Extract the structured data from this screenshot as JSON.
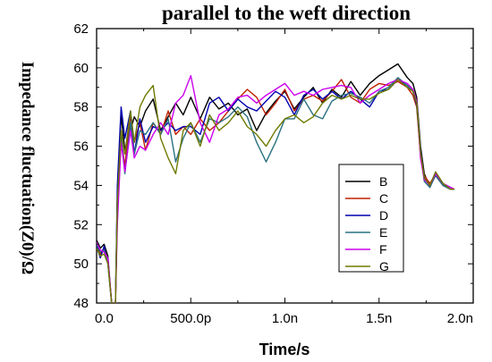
{
  "chart_data": {
    "type": "line",
    "title": "parallel to the weft direction",
    "xlabel": "Time/s",
    "ylabel": "Impedance fluctuation(Z0)/Ω",
    "xlim": [
      0,
      2.0
    ],
    "ylim": [
      48,
      62
    ],
    "x_ticks": [
      0,
      0.5,
      1.0,
      1.5,
      2.0
    ],
    "x_tick_labels": [
      "0.0",
      "500.0p",
      "1.0n",
      "1.5n",
      "2.0n"
    ],
    "y_ticks": [
      48,
      50,
      52,
      54,
      56,
      58,
      60,
      62
    ],
    "y_tick_labels": [
      "48",
      "50",
      "52",
      "54",
      "56",
      "58",
      "60",
      "62"
    ],
    "grid": false,
    "legend_position": "right",
    "series": [
      {
        "name": "B",
        "color": "#000000",
        "x": [
          0,
          0.02,
          0.04,
          0.06,
          0.08,
          0.1,
          0.11,
          0.13,
          0.15,
          0.18,
          0.2,
          0.23,
          0.26,
          0.3,
          0.34,
          0.38,
          0.42,
          0.46,
          0.5,
          0.55,
          0.6,
          0.65,
          0.7,
          0.75,
          0.8,
          0.85,
          0.9,
          0.95,
          1.0,
          1.05,
          1.1,
          1.15,
          1.2,
          1.25,
          1.3,
          1.35,
          1.4,
          1.45,
          1.5,
          1.55,
          1.6,
          1.65,
          1.68,
          1.7,
          1.72,
          1.74,
          1.77,
          1.8,
          1.84,
          1.88,
          1.9
        ],
        "y": [
          51.2,
          50.8,
          51.0,
          50.4,
          48,
          48,
          53.5,
          57.6,
          55.8,
          56.8,
          57.5,
          57.0,
          57.8,
          58.4,
          56.8,
          57.5,
          58.2,
          57.6,
          58.5,
          57.4,
          58.5,
          57.9,
          58.2,
          57.6,
          57.9,
          56.8,
          57.7,
          58.3,
          58.8,
          57.9,
          58.5,
          59.0,
          58.2,
          58.9,
          58.5,
          59.3,
          58.6,
          59.2,
          59.6,
          59.9,
          60.2,
          59.5,
          59.2,
          58.5,
          56.0,
          54.6,
          53.9,
          54.6,
          54.0,
          53.8,
          53.8
        ]
      },
      {
        "name": "C",
        "color": "#c02000",
        "x": [
          0,
          0.02,
          0.04,
          0.06,
          0.08,
          0.1,
          0.11,
          0.13,
          0.15,
          0.18,
          0.2,
          0.23,
          0.26,
          0.3,
          0.34,
          0.38,
          0.42,
          0.46,
          0.5,
          0.55,
          0.6,
          0.65,
          0.7,
          0.75,
          0.8,
          0.85,
          0.9,
          0.95,
          1.0,
          1.05,
          1.1,
          1.15,
          1.2,
          1.25,
          1.3,
          1.35,
          1.4,
          1.45,
          1.5,
          1.55,
          1.6,
          1.65,
          1.68,
          1.7,
          1.72,
          1.74,
          1.77,
          1.8,
          1.84,
          1.88,
          1.9
        ],
        "y": [
          51.0,
          50.5,
          50.8,
          50.2,
          48,
          48,
          52.5,
          56.4,
          55.0,
          57.6,
          56.2,
          57.2,
          55.8,
          57.2,
          56.6,
          57.8,
          56.6,
          57.0,
          56.6,
          57.4,
          56.8,
          57.2,
          57.8,
          58.4,
          58.9,
          58.5,
          57.6,
          58.2,
          58.9,
          57.8,
          58.4,
          58.6,
          58.3,
          58.8,
          59.4,
          58.5,
          58.2,
          58.9,
          59.2,
          59.1,
          59.3,
          59.0,
          58.6,
          58.0,
          55.5,
          54.5,
          54.1,
          54.6,
          54.0,
          53.9,
          53.8
        ]
      },
      {
        "name": "D",
        "color": "#0000b0",
        "x": [
          0,
          0.02,
          0.04,
          0.06,
          0.08,
          0.1,
          0.11,
          0.13,
          0.15,
          0.18,
          0.2,
          0.23,
          0.26,
          0.3,
          0.34,
          0.38,
          0.42,
          0.46,
          0.5,
          0.55,
          0.6,
          0.65,
          0.7,
          0.75,
          0.8,
          0.85,
          0.9,
          0.95,
          1.0,
          1.05,
          1.1,
          1.15,
          1.2,
          1.25,
          1.3,
          1.35,
          1.4,
          1.45,
          1.5,
          1.55,
          1.6,
          1.65,
          1.68,
          1.7,
          1.72,
          1.74,
          1.77,
          1.8,
          1.84,
          1.88,
          1.9
        ],
        "y": [
          50.9,
          50.3,
          50.9,
          50.0,
          48,
          48,
          54.0,
          58.0,
          56.4,
          57.8,
          55.6,
          57.4,
          56.2,
          57.0,
          56.8,
          57.2,
          56.8,
          57.0,
          57.0,
          56.6,
          58.2,
          58.5,
          57.8,
          58.4,
          58.0,
          57.8,
          58.3,
          58.8,
          58.5,
          57.6,
          58.6,
          58.9,
          58.4,
          58.8,
          58.4,
          58.8,
          58.4,
          58.0,
          58.8,
          58.9,
          59.4,
          59.1,
          58.8,
          58.1,
          55.8,
          54.4,
          54.0,
          54.5,
          54.0,
          53.8,
          53.8
        ]
      },
      {
        "name": "E",
        "color": "#2a7080",
        "x": [
          0,
          0.02,
          0.04,
          0.06,
          0.08,
          0.1,
          0.11,
          0.13,
          0.15,
          0.18,
          0.2,
          0.23,
          0.26,
          0.3,
          0.34,
          0.38,
          0.42,
          0.46,
          0.5,
          0.55,
          0.6,
          0.65,
          0.7,
          0.75,
          0.8,
          0.85,
          0.9,
          0.95,
          1.0,
          1.05,
          1.1,
          1.15,
          1.2,
          1.25,
          1.3,
          1.35,
          1.4,
          1.45,
          1.5,
          1.55,
          1.6,
          1.65,
          1.68,
          1.7,
          1.72,
          1.74,
          1.77,
          1.8,
          1.84,
          1.88,
          1.9
        ],
        "y": [
          51.0,
          50.6,
          50.7,
          50.1,
          48,
          48,
          53.0,
          56.6,
          54.6,
          57.2,
          55.6,
          56.8,
          56.6,
          57.2,
          56.6,
          57.4,
          55.2,
          56.4,
          57.2,
          56.2,
          57.4,
          57.2,
          57.5,
          58.0,
          57.5,
          56.2,
          55.2,
          56.2,
          57.4,
          57.4,
          58.4,
          57.6,
          57.4,
          58.3,
          58.6,
          58.7,
          58.5,
          58.2,
          58.8,
          59.0,
          59.5,
          59.1,
          58.8,
          58.2,
          55.6,
          54.2,
          53.9,
          54.5,
          54.0,
          53.8,
          53.8
        ]
      },
      {
        "name": "F",
        "color": "#cc00ee",
        "x": [
          0,
          0.02,
          0.04,
          0.06,
          0.08,
          0.1,
          0.11,
          0.13,
          0.15,
          0.18,
          0.2,
          0.23,
          0.26,
          0.3,
          0.34,
          0.38,
          0.42,
          0.46,
          0.5,
          0.55,
          0.6,
          0.65,
          0.7,
          0.75,
          0.8,
          0.85,
          0.9,
          0.95,
          1.0,
          1.05,
          1.1,
          1.15,
          1.2,
          1.25,
          1.3,
          1.35,
          1.4,
          1.45,
          1.5,
          1.55,
          1.6,
          1.65,
          1.68,
          1.7,
          1.72,
          1.74,
          1.77,
          1.8,
          1.84,
          1.88,
          1.9
        ],
        "y": [
          51.1,
          50.7,
          50.6,
          50.3,
          48,
          48,
          52.0,
          56.2,
          54.7,
          56.8,
          55.4,
          56.0,
          55.8,
          56.6,
          57.2,
          56.6,
          58.2,
          58.6,
          59.6,
          57.2,
          56.2,
          57.6,
          57.9,
          58.5,
          58.6,
          58.2,
          58.6,
          58.9,
          59.2,
          58.6,
          58.8,
          58.6,
          58.9,
          59.0,
          59.1,
          59.0,
          58.2,
          58.6,
          58.9,
          59.2,
          59.4,
          59.2,
          58.9,
          58.3,
          55.4,
          54.3,
          54.0,
          54.6,
          54.1,
          53.9,
          53.8
        ]
      },
      {
        "name": "G",
        "color": "#6e7a00",
        "x": [
          0,
          0.02,
          0.04,
          0.06,
          0.08,
          0.1,
          0.11,
          0.13,
          0.15,
          0.18,
          0.2,
          0.23,
          0.26,
          0.3,
          0.34,
          0.38,
          0.42,
          0.46,
          0.5,
          0.55,
          0.6,
          0.65,
          0.7,
          0.75,
          0.8,
          0.85,
          0.9,
          0.95,
          1.0,
          1.05,
          1.1,
          1.15,
          1.2,
          1.25,
          1.3,
          1.35,
          1.4,
          1.45,
          1.5,
          1.55,
          1.6,
          1.65,
          1.68,
          1.7,
          1.72,
          1.74,
          1.77,
          1.8,
          1.84,
          1.88,
          1.9
        ],
        "y": [
          50.8,
          50.4,
          50.5,
          50.0,
          48,
          48,
          53.2,
          56.8,
          55.6,
          57.8,
          56.2,
          58.0,
          58.6,
          59.1,
          56.4,
          55.4,
          54.6,
          56.8,
          57.2,
          56.0,
          57.6,
          56.8,
          57.2,
          57.8,
          57.0,
          56.6,
          56.0,
          56.8,
          57.4,
          57.6,
          57.2,
          57.5,
          58.2,
          58.6,
          58.4,
          58.6,
          58.4,
          58.4,
          58.7,
          58.9,
          59.4,
          59.0,
          58.8,
          58.2,
          55.7,
          54.4,
          54.0,
          54.7,
          54.1,
          53.8,
          53.8
        ]
      }
    ]
  }
}
